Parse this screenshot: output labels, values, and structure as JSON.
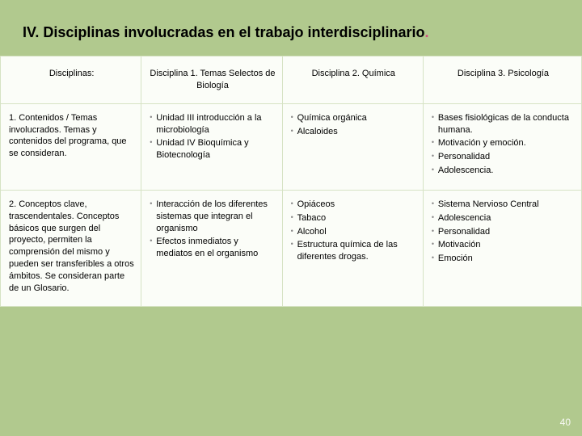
{
  "background_color": "#b1c98e",
  "table_background": "#fbfdf8",
  "border_color": "#d6e3c4",
  "title_main": "IV. Disciplinas involucradas en el  trabajo interdisciplinario",
  "title_dot": ".",
  "title_fontsize": 18,
  "body_fontsize": 11,
  "page_number": "40",
  "page_number_color": "#ffffff",
  "columns": [
    "Disciplinas:",
    "Disciplina 1.\nTemas Selectos de Biología",
    "Disciplina 2.\nQuímica",
    "Disciplina 3.\nPsicología"
  ],
  "rows": [
    {
      "head": "1. Contenidos / Temas involucrados.\nTemas y contenidos del programa, que se consideran.",
      "c1": [
        "Unidad III introducción a la microbiología",
        "Unidad IV Bioquímica y Biotecnología"
      ],
      "c2": [
        "Química orgánica",
        "Alcaloides"
      ],
      "c3": [
        "Bases fisiológicas de la conducta humana.",
        "Motivación y emoción.",
        "Personalidad",
        "Adolescencia."
      ]
    },
    {
      "head": "2. Conceptos clave, trascendentales.\nConceptos básicos que surgen del proyecto, permiten la comprensión del mismo y  pueden ser transferibles a otros ámbitos.\nSe consideran parte de un  Glosario.",
      "c1": [
        "Interacción de los diferentes sistemas que integran el organismo",
        "Efectos inmediatos y mediatos en el organismo"
      ],
      "c2": [
        "Opiáceos",
        "Tabaco",
        "Alcohol",
        "Estructura química de las diferentes drogas."
      ],
      "c3": [
        "Sistema Nervioso Central",
        "Adolescencia",
        "Personalidad",
        "Motivación",
        "Emoción"
      ]
    }
  ]
}
